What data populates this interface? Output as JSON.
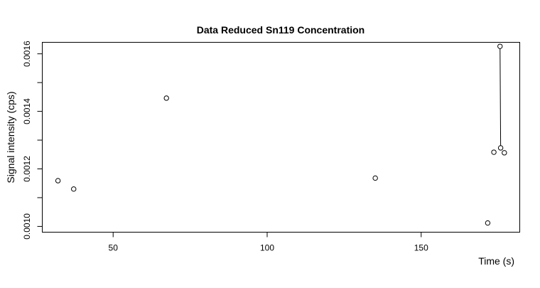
{
  "chart_data": {
    "type": "scatter",
    "title": "Data Reduced Sn119 Concentration",
    "xlabel": "Time (s)",
    "ylabel": "Signal intensity (cps)",
    "xlim": [
      27,
      182
    ],
    "ylim": [
      0.00098,
      0.00164
    ],
    "x_ticks": [
      50,
      100,
      150
    ],
    "y_ticks": [
      0.001,
      0.0012,
      0.0014,
      0.0016
    ],
    "x_tick_labels": [
      "50",
      "100",
      "150"
    ],
    "y_tick_labels": [
      "0.0010",
      "0.0012",
      "0.0014",
      "0.0016"
    ],
    "grid": false,
    "points": [
      {
        "x": 32.1,
        "y": 0.001159
      },
      {
        "x": 37.2,
        "y": 0.00113
      },
      {
        "x": 67.3,
        "y": 0.001446
      },
      {
        "x": 135.1,
        "y": 0.001168
      },
      {
        "x": 171.6,
        "y": 0.001012
      },
      {
        "x": 173.6,
        "y": 0.001258
      },
      {
        "x": 175.6,
        "y": 0.001626
      },
      {
        "x": 175.8,
        "y": 0.001273
      },
      {
        "x": 177.0,
        "y": 0.001256
      }
    ],
    "segments": [
      {
        "x1": 175.6,
        "y1": 0.001626,
        "x2": 175.8,
        "y2": 0.001273
      }
    ]
  }
}
